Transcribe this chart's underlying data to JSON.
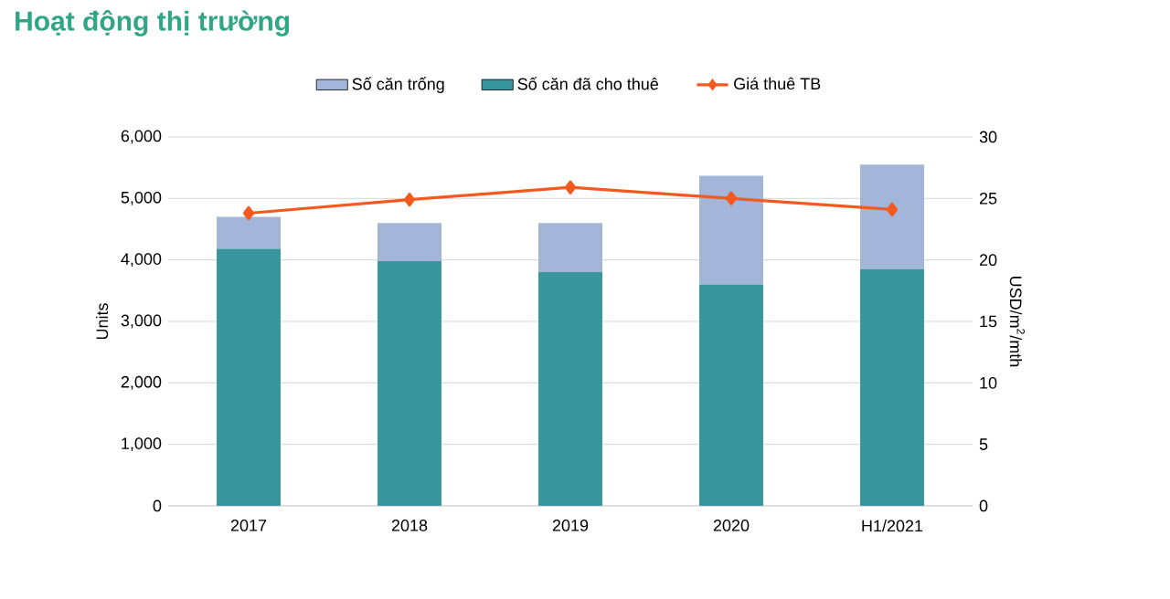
{
  "chart_data": {
    "type": "bar",
    "title": "Hoạt động thị trường",
    "ylabel": "Units",
    "y2label": "USD/m$^{2}$/mth",
    "categories": [
      "2017",
      "2018",
      "2019",
      "2020",
      "H1/2021"
    ],
    "stacked": true,
    "series": [
      {
        "name": "Số căn đã cho thuê",
        "color": "#3a969e",
        "values": [
          4180,
          3980,
          3800,
          3600,
          3850
        ]
      },
      {
        "name": "Số căn trống",
        "color": "#a3b6d9",
        "values": [
          520,
          620,
          800,
          1770,
          1700
        ]
      },
      {
        "name": "Giá thuê TB",
        "type": "line",
        "axis": "y2",
        "color": "#f4591f",
        "marker": "diamond",
        "values": [
          23.8,
          24.9,
          25.9,
          25.0,
          24.1
        ]
      }
    ],
    "ylim": [
      0,
      6000
    ],
    "yticks": [
      {
        "value": 0,
        "label": "0"
      },
      {
        "value": 1000,
        "label": "1,000"
      },
      {
        "value": 2000,
        "label": "2,000"
      },
      {
        "value": 3000,
        "label": "3,000"
      },
      {
        "value": 4000,
        "label": "4,000"
      },
      {
        "value": 5000,
        "label": "5,000"
      },
      {
        "value": 6000,
        "label": "6,000"
      }
    ],
    "y2lim": [
      0,
      30
    ],
    "y2ticks": [
      0,
      5,
      10,
      15,
      20,
      25,
      30
    ],
    "grid": "y",
    "legend": "top"
  }
}
